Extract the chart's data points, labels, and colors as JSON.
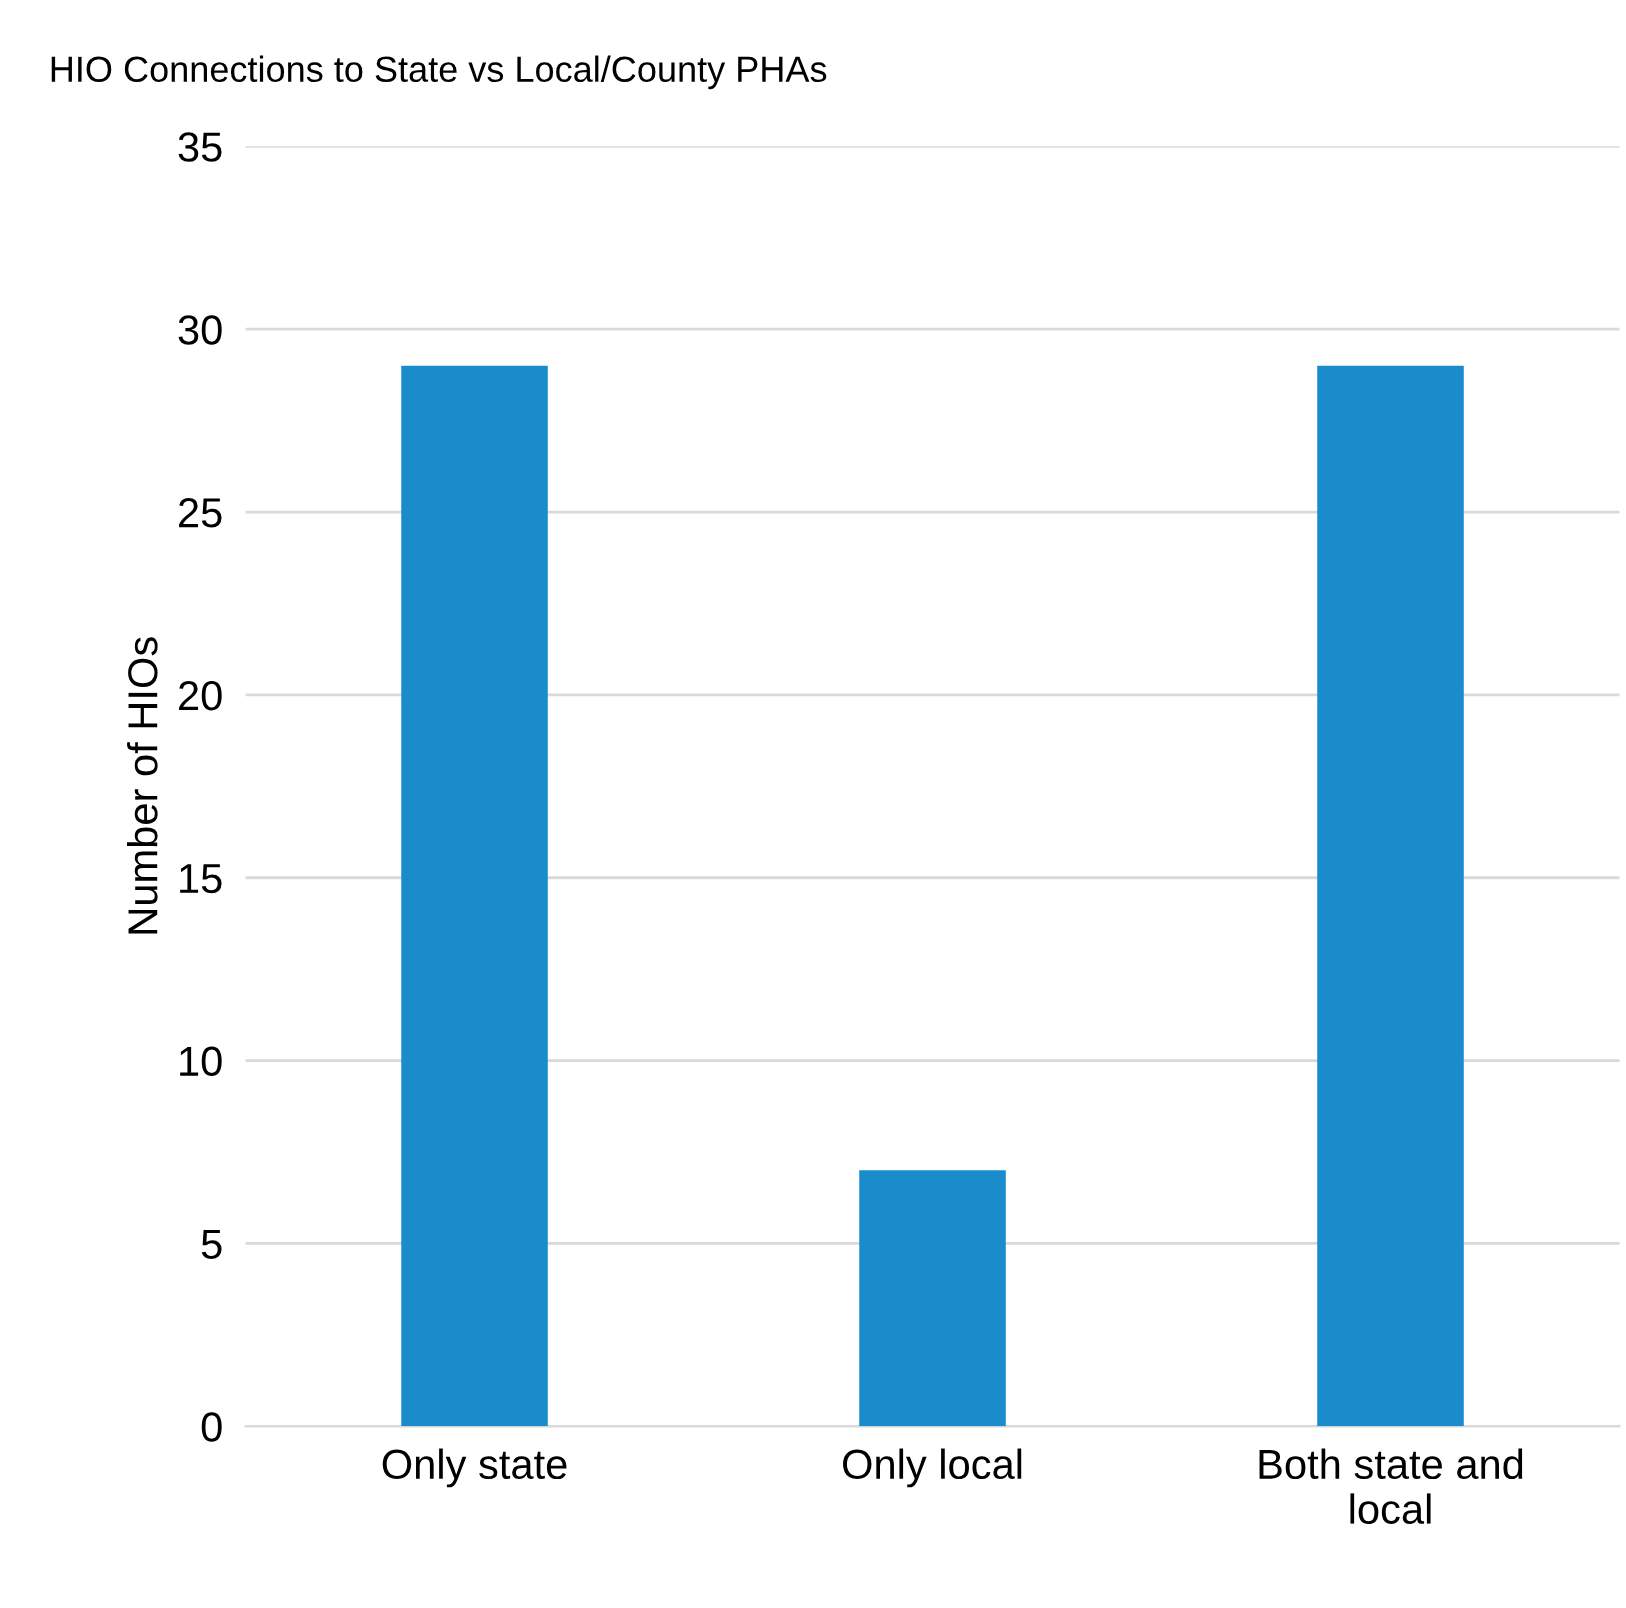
{
  "chart_data": {
    "type": "bar",
    "title": "HIO Connections to State vs Local/County PHAs",
    "ylabel": "Number of HIOs",
    "categories": [
      "Only state",
      "Only local",
      "Both state and\nlocal"
    ],
    "values": [
      29,
      7,
      29
    ],
    "color": "#1a8ccc",
    "ylim": [
      0,
      35
    ],
    "yticks": [
      0,
      5,
      10,
      15,
      20,
      25,
      30,
      35
    ],
    "grid": "y"
  }
}
